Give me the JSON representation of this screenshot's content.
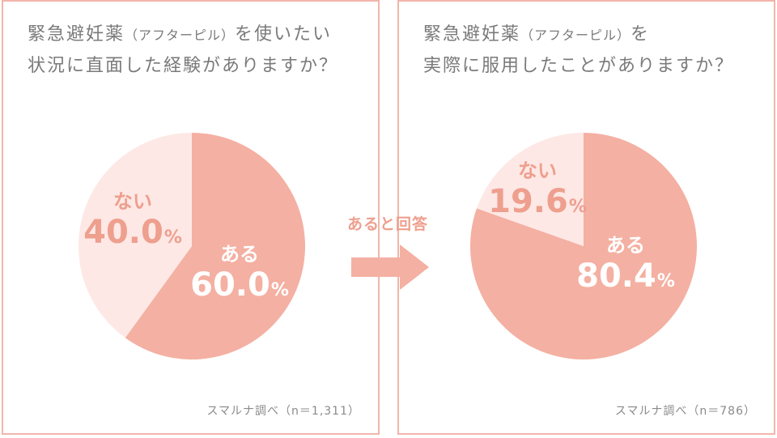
{
  "left_panel": {
    "question_line1_main": "緊急避妊薬",
    "question_line1_paren": "（アフターピル）",
    "question_line1_tail": "を使いたい",
    "question_line2": "状況に直面した経験がありますか？",
    "source": "スマルナ調べ（n＝1,311）"
  },
  "right_panel": {
    "question_line1_main": "緊急避妊薬",
    "question_line1_paren": "（アフターピル）",
    "question_line1_tail": "を",
    "question_line2": "実際に服用したことがありますか？",
    "source": "スマルナ調べ（n＝786）"
  },
  "connector": {
    "label": "あると回答",
    "icon": "right-arrow-icon"
  },
  "colors": {
    "dark_slice": "#f4b0a2",
    "light_slice": "#fde8e5",
    "accent": "#ee9f8e",
    "border": "#f2b5aa",
    "text": "#7a7a7a"
  },
  "chart_data": [
    {
      "type": "pie",
      "title": "緊急避妊薬（アフターピル）を使いたい状況に直面した経験がありますか？",
      "categories": [
        "ある",
        "ない"
      ],
      "values": [
        60.0,
        40.0
      ],
      "value_labels": [
        "60.0",
        "40.0"
      ],
      "unit": "%",
      "colors": [
        "#f4b0a2",
        "#fde8e5"
      ],
      "start": "12 o'clock, clockwise",
      "n": "1,311"
    },
    {
      "type": "pie",
      "title": "緊急避妊薬（アフターピル）を実際に服用したことがありますか？",
      "categories": [
        "ある",
        "ない"
      ],
      "values": [
        80.4,
        19.6
      ],
      "value_labels": [
        "80.4",
        "19.6"
      ],
      "unit": "%",
      "colors": [
        "#f4b0a2",
        "#fde8e5"
      ],
      "start": "12 o'clock, clockwise",
      "n": "786"
    }
  ]
}
